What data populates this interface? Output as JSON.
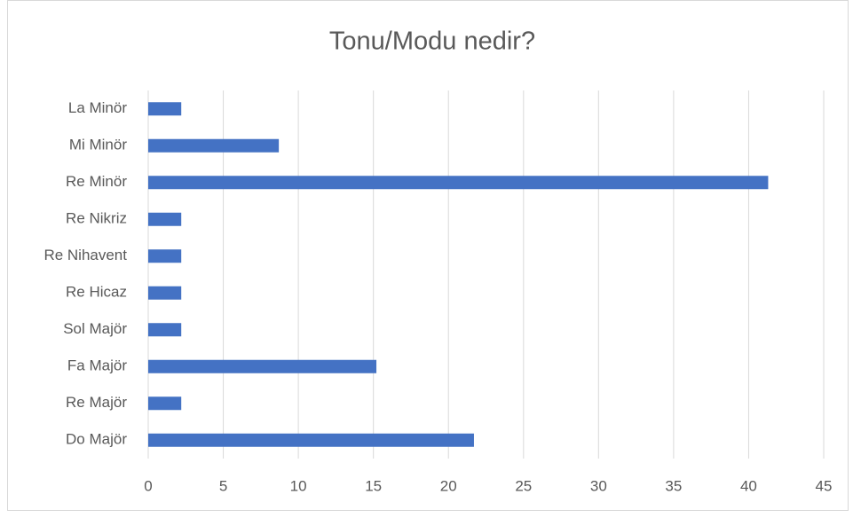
{
  "chart_data": {
    "type": "barh",
    "title": "Tonu/Modu nedir?",
    "categories": [
      "La Minör",
      "Mi Minör",
      "Re Minör",
      "Re Nikriz",
      "Re Nihavent",
      "Re Hicaz",
      "Sol Majör",
      "Fa Majör",
      "Re Majör",
      "Do Majör"
    ],
    "values": [
      2.2,
      8.7,
      41.3,
      2.2,
      2.2,
      2.2,
      2.2,
      15.2,
      2.2,
      21.7
    ],
    "color": "#4472c4",
    "xlim": [
      0,
      45
    ],
    "xticks": [
      0,
      5,
      10,
      15,
      20,
      25,
      30,
      35,
      40,
      45
    ],
    "grid": true
  }
}
